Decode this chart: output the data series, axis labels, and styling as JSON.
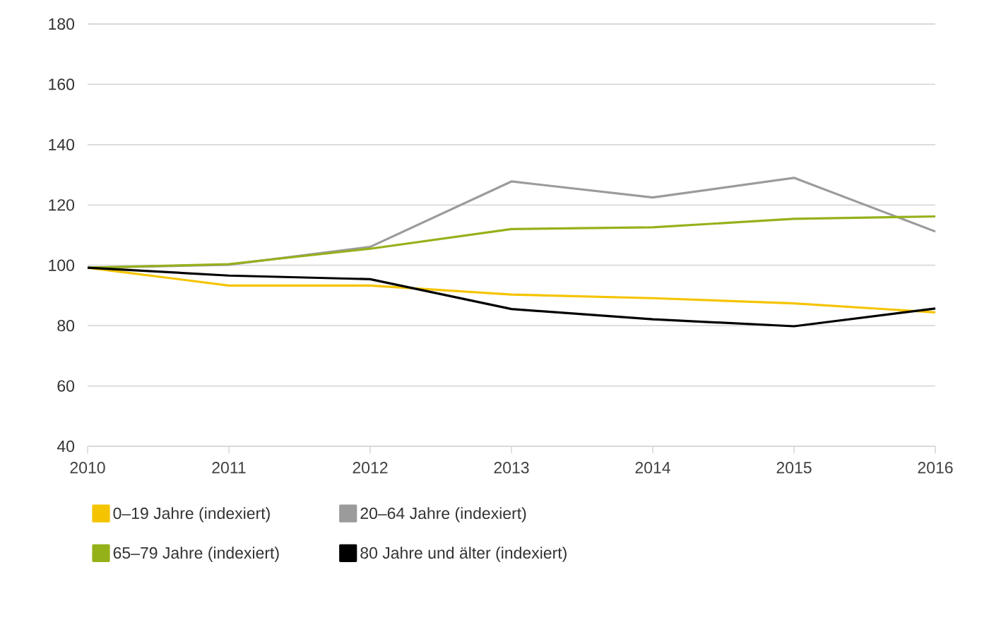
{
  "chart_data": {
    "type": "line",
    "x": [
      2010,
      2011,
      2012,
      2013,
      2014,
      2015,
      2016
    ],
    "series": [
      {
        "name": "0–19 Jahre (indexiert)",
        "color": "#f5c400",
        "values": [
          99.2,
          93.3,
          93.3,
          90.3,
          89.1,
          87.4,
          84.4
        ]
      },
      {
        "name": "20–64 Jahre (indexiert)",
        "color": "#9b9b9b",
        "values": [
          99.2,
          100.2,
          106.1,
          127.8,
          122.5,
          129,
          111.2
        ]
      },
      {
        "name": "65–79 Jahre (indexiert)",
        "color": "#95b11a",
        "values": [
          99.2,
          100.4,
          105.5,
          112,
          112.6,
          115.4,
          116.2
        ]
      },
      {
        "name": "80 Jahre und älter (indexiert)",
        "color": "#000000",
        "values": [
          99.2,
          96.6,
          95.4,
          85.5,
          82.1,
          79.8,
          85.7
        ]
      }
    ],
    "xlim": [
      2010,
      2016
    ],
    "ylim": [
      40,
      180
    ],
    "xticks": [
      2010,
      2011,
      2012,
      2013,
      2014,
      2015,
      2016
    ],
    "yticks": [
      40,
      60,
      80,
      100,
      120,
      140,
      160,
      180
    ],
    "grid": "y",
    "legend": "bottom",
    "marker": "none",
    "line_style": "solid"
  }
}
